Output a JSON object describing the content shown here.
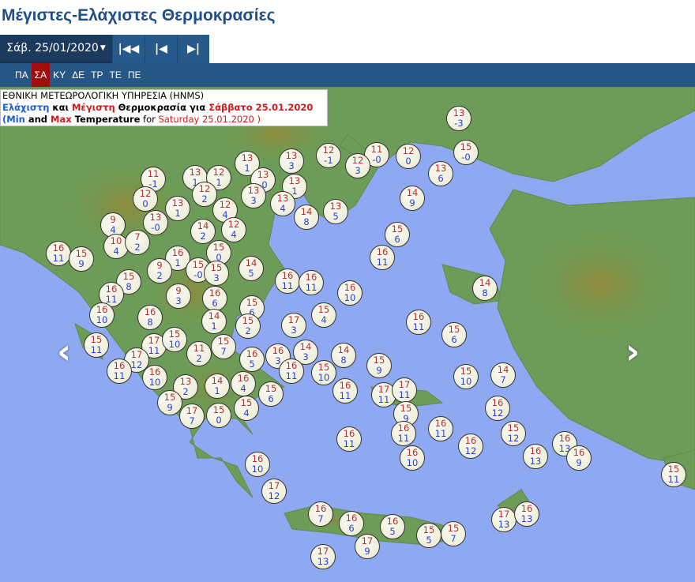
{
  "title": "Μέγιστες-Ελάχιστες Θερμοκρασίες",
  "toolbar": {
    "date": "Σάβ. 25/01/2020",
    "first_icon": "skip-first-icon",
    "prev_icon": "step-back-icon",
    "next_icon": "step-forward-icon"
  },
  "days": [
    {
      "label": "ΠΑ",
      "active": false
    },
    {
      "label": "ΣΑ",
      "active": true
    },
    {
      "label": "ΚΥ",
      "active": false
    },
    {
      "label": "ΔΕ",
      "active": false
    },
    {
      "label": "ΤΡ",
      "active": false
    },
    {
      "label": "ΤΕ",
      "active": false
    },
    {
      "label": "ΠΕ",
      "active": false
    }
  ],
  "info": {
    "line1": "ΕΘΝΙΚΗ ΜΕΤΕΩΡΟΛΟΓΙΚΗ ΥΠΗΡΕΣΙΑ (HNMS)",
    "min_gr": "Ελάχιστη",
    "and_gr": " και ",
    "max_gr": "Μέγιστη",
    "rest_gr": " Θερμοκρασία για ",
    "date_gr": "Σάββατο 25.01.2020",
    "open": "(",
    "min_en": "Min",
    "and_en": " and ",
    "max_en": "Max",
    "temp_en": " Temperature",
    "for_en": " for ",
    "date_en": "Saturday 25.01.2020 )"
  },
  "colors": {
    "max": "#b43030",
    "min": "#2a3fd4",
    "sea": "#8ea9f2",
    "active_day": "#a10d0d"
  },
  "stations": [
    [
      581,
      150,
      13,
      -3
    ],
    [
      313,
      207,
      13,
      1
    ],
    [
      369,
      204,
      13,
      3
    ],
    [
      416,
      197,
      12,
      -1
    ],
    [
      477,
      196,
      11,
      "-0"
    ],
    [
      517,
      198,
      12,
      0
    ],
    [
      590,
      193,
      15,
      "-0"
    ],
    [
      453,
      210,
      12,
      3
    ],
    [
      558,
      220,
      13,
      6
    ],
    [
      194,
      227,
      11,
      -1
    ],
    [
      247,
      225,
      13,
      1
    ],
    [
      277,
      225,
      12,
      1
    ],
    [
      333,
      228,
      13,
      "-0"
    ],
    [
      373,
      236,
      13,
      1
    ],
    [
      259,
      246,
      12,
      2
    ],
    [
      321,
      248,
      13,
      3
    ],
    [
      184,
      252,
      12,
      0
    ],
    [
      285,
      266,
      12,
      4
    ],
    [
      225,
      264,
      13,
      1
    ],
    [
      358,
      258,
      13,
      4
    ],
    [
      388,
      275,
      14,
      8
    ],
    [
      425,
      268,
      13,
      5
    ],
    [
      522,
      251,
      14,
      9
    ],
    [
      143,
      285,
      9,
      4
    ],
    [
      197,
      282,
      13,
      "-0"
    ],
    [
      257,
      293,
      14,
      2
    ],
    [
      296,
      291,
      12,
      4
    ],
    [
      503,
      297,
      15,
      6
    ],
    [
      74,
      321,
      16,
      11
    ],
    [
      103,
      328,
      15,
      9
    ],
    [
      147,
      312,
      10,
      4
    ],
    [
      174,
      307,
      7,
      2
    ],
    [
      225,
      327,
      16,
      1
    ],
    [
      277,
      320,
      15,
      0
    ],
    [
      484,
      326,
      16,
      11
    ],
    [
      202,
      343,
      9,
      2
    ],
    [
      251,
      342,
      15,
      "-0"
    ],
    [
      274,
      346,
      15,
      3
    ],
    [
      318,
      340,
      14,
      5
    ],
    [
      364,
      356,
      16,
      11
    ],
    [
      394,
      358,
      16,
      11
    ],
    [
      163,
      357,
      15,
      8
    ],
    [
      141,
      373,
      16,
      11
    ],
    [
      226,
      375,
      9,
      3
    ],
    [
      272,
      378,
      16,
      6
    ],
    [
      443,
      371,
      16,
      10
    ],
    [
      614,
      365,
      14,
      8
    ],
    [
      319,
      390,
      15,
      6
    ],
    [
      129,
      399,
      16,
      10
    ],
    [
      190,
      402,
      16,
      8
    ],
    [
      271,
      407,
      14,
      1
    ],
    [
      314,
      413,
      15,
      2
    ],
    [
      372,
      412,
      17,
      3
    ],
    [
      410,
      399,
      15,
      4
    ],
    [
      530,
      408,
      16,
      11
    ],
    [
      575,
      424,
      15,
      6
    ],
    [
      122,
      437,
      15,
      11
    ],
    [
      195,
      438,
      17,
      11
    ],
    [
      221,
      430,
      15,
      10
    ],
    [
      252,
      448,
      11,
      2
    ],
    [
      283,
      439,
      15,
      7
    ],
    [
      319,
      455,
      16,
      5
    ],
    [
      352,
      451,
      16,
      3
    ],
    [
      387,
      446,
      14,
      3
    ],
    [
      435,
      450,
      14,
      8
    ],
    [
      480,
      463,
      15,
      9
    ],
    [
      173,
      456,
      17,
      12
    ],
    [
      151,
      470,
      16,
      11
    ],
    [
      196,
      478,
      16,
      10
    ],
    [
      369,
      470,
      16,
      11
    ],
    [
      410,
      472,
      15,
      10
    ],
    [
      590,
      477,
      15,
      10
    ],
    [
      637,
      475,
      14,
      7
    ],
    [
      235,
      490,
      13,
      2
    ],
    [
      275,
      489,
      14,
      1
    ],
    [
      308,
      486,
      16,
      4
    ],
    [
      343,
      499,
      15,
      6
    ],
    [
      437,
      495,
      16,
      11
    ],
    [
      486,
      500,
      17,
      11
    ],
    [
      512,
      494,
      17,
      11
    ],
    [
      215,
      510,
      15,
      9
    ],
    [
      243,
      527,
      17,
      7
    ],
    [
      277,
      526,
      15,
      0
    ],
    [
      312,
      517,
      15,
      4
    ],
    [
      514,
      524,
      15,
      9
    ],
    [
      630,
      517,
      16,
      12
    ],
    [
      442,
      556,
      16,
      11
    ],
    [
      511,
      549,
      16,
      11
    ],
    [
      558,
      543,
      16,
      11
    ],
    [
      596,
      565,
      16,
      12
    ],
    [
      650,
      549,
      15,
      12
    ],
    [
      715,
      562,
      16,
      13
    ],
    [
      678,
      578,
      16,
      13
    ],
    [
      733,
      580,
      16,
      9
    ],
    [
      522,
      580,
      16,
      10
    ],
    [
      326,
      588,
      16,
      10
    ],
    [
      347,
      622,
      17,
      12
    ],
    [
      853,
      601,
      15,
      11
    ],
    [
      406,
      651,
      16,
      7
    ],
    [
      445,
      663,
      16,
      6
    ],
    [
      497,
      667,
      16,
      5
    ],
    [
      543,
      678,
      15,
      5
    ],
    [
      574,
      676,
      15,
      7
    ],
    [
      465,
      692,
      17,
      9
    ],
    [
      638,
      658,
      17,
      13
    ],
    [
      667,
      651,
      16,
      13
    ],
    [
      409,
      705,
      17,
      13
    ]
  ]
}
